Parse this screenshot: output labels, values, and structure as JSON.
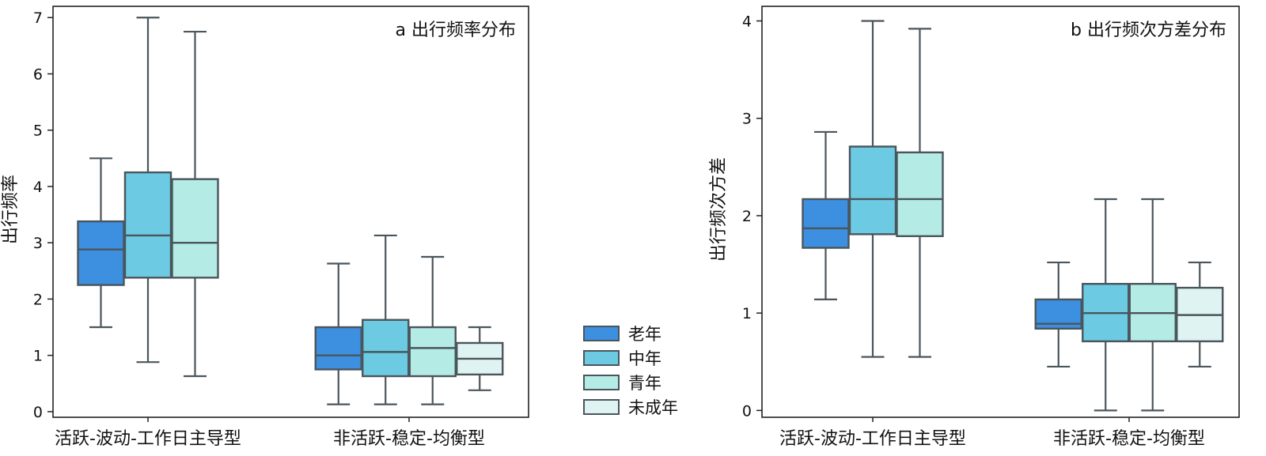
{
  "legend": [
    {
      "label": "老年",
      "color": "#3d8fe0"
    },
    {
      "label": "中年",
      "color": "#6ccbe3"
    },
    {
      "label": "青年",
      "color": "#b5ebe5"
    },
    {
      "label": "未成年",
      "color": "#e0f3f3"
    }
  ],
  "chart_data": [
    {
      "type": "box",
      "title": "a 出行频率分布",
      "ylabel": "出行频率",
      "xlabel": "",
      "ylim": [
        -0.1,
        7.2
      ],
      "yticks": [
        0,
        1,
        2,
        3,
        4,
        5,
        6,
        7
      ],
      "categories": [
        "活跃-波动-工作日主导型",
        "非活跃-稳定-均衡型"
      ],
      "series": [
        {
          "name": "老年",
          "boxes": [
            {
              "min": 1.5,
              "q1": 2.25,
              "median": 2.88,
              "q3": 3.38,
              "max": 4.5
            },
            {
              "min": 0.13,
              "q1": 0.75,
              "median": 1.0,
              "q3": 1.5,
              "max": 2.63
            }
          ]
        },
        {
          "name": "中年",
          "boxes": [
            {
              "min": 0.88,
              "q1": 2.38,
              "median": 3.13,
              "q3": 4.25,
              "max": 7.0
            },
            {
              "min": 0.13,
              "q1": 0.63,
              "median": 1.06,
              "q3": 1.63,
              "max": 3.13
            }
          ]
        },
        {
          "name": "青年",
          "boxes": [
            {
              "min": 0.63,
              "q1": 2.38,
              "median": 3.0,
              "q3": 4.13,
              "max": 6.75
            },
            {
              "min": 0.13,
              "q1": 0.63,
              "median": 1.13,
              "q3": 1.5,
              "max": 2.75
            }
          ]
        },
        {
          "name": "未成年",
          "boxes": [
            null,
            {
              "min": 0.38,
              "q1": 0.66,
              "median": 0.94,
              "q3": 1.22,
              "max": 1.5
            }
          ]
        }
      ]
    },
    {
      "type": "box",
      "title": "b 出行频次方差分布",
      "ylabel": "出行频次方差",
      "xlabel": "",
      "ylim": [
        -0.07,
        4.15
      ],
      "yticks": [
        0,
        1,
        2,
        3,
        4
      ],
      "categories": [
        "活跃-波动-工作日主导型",
        "非活跃-稳定-均衡型"
      ],
      "series": [
        {
          "name": "老年",
          "boxes": [
            {
              "min": 1.14,
              "q1": 1.67,
              "median": 1.87,
              "q3": 2.17,
              "max": 2.86
            },
            {
              "min": 0.45,
              "q1": 0.84,
              "median": 0.89,
              "q3": 1.14,
              "max": 1.52
            }
          ]
        },
        {
          "name": "中年",
          "boxes": [
            {
              "min": 0.55,
              "q1": 1.81,
              "median": 2.17,
              "q3": 2.71,
              "max": 4.0
            },
            {
              "min": 0.0,
              "q1": 0.71,
              "median": 1.0,
              "q3": 1.3,
              "max": 2.17
            }
          ]
        },
        {
          "name": "青年",
          "boxes": [
            {
              "min": 0.55,
              "q1": 1.79,
              "median": 2.17,
              "q3": 2.65,
              "max": 3.92
            },
            {
              "min": 0.0,
              "q1": 0.71,
              "median": 1.0,
              "q3": 1.3,
              "max": 2.17
            }
          ]
        },
        {
          "name": "未成年",
          "boxes": [
            null,
            {
              "min": 0.45,
              "q1": 0.71,
              "median": 0.98,
              "q3": 1.26,
              "max": 1.52
            }
          ]
        }
      ]
    }
  ]
}
